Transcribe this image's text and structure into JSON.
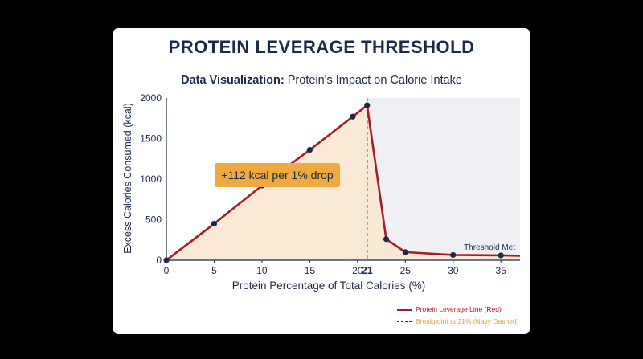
{
  "title": "PROTEIN LEVERAGE THRESHOLD",
  "subtitle_bold": "Data Visualization:",
  "subtitle_rest": " Protein's Impact on Calorie Intake",
  "chart_data": {
    "type": "line",
    "xlabel": "Protein Percentage of Total Calories (%)",
    "ylabel": "Excess Calories Consumed (kcal)",
    "xlim": [
      0,
      37
    ],
    "ylim": [
      0,
      2000
    ],
    "xticks": [
      0,
      5,
      10,
      15,
      20,
      25,
      30,
      35
    ],
    "yticks": [
      0,
      500,
      1000,
      1500,
      2000
    ],
    "breakpoint_tick": "21",
    "breakpoint_x": 21,
    "series": [
      {
        "name": "Protein Leverage Line (Red)",
        "color": "#a61c26",
        "x": [
          0,
          5,
          10,
          15,
          19.5,
          21,
          23,
          25,
          30,
          35,
          37
        ],
        "y": [
          0,
          450,
          920,
          1360,
          1770,
          1910,
          260,
          100,
          65,
          60,
          55
        ]
      }
    ],
    "marker_indices": [
      0,
      1,
      2,
      3,
      4,
      5,
      6,
      7,
      8,
      9
    ],
    "annotations": {
      "slope_label": "+112 kcal per 1% drop",
      "threshold_label": "Threshold Met"
    },
    "legend": {
      "position": "bottom-right",
      "entries": [
        {
          "label": "Protein Leverage Line (Red)",
          "color": "#a61c26",
          "style": "solid"
        },
        {
          "label": "Breakpoint at 21% (Navy Dashed)",
          "color": "#1a2a4a",
          "style": "dashed"
        }
      ]
    },
    "colors": {
      "left_fill": "#fae8d0",
      "right_region": "#eef0f4",
      "marker": "#1a2a4a",
      "annotation_bg": "#f0a93e"
    }
  }
}
